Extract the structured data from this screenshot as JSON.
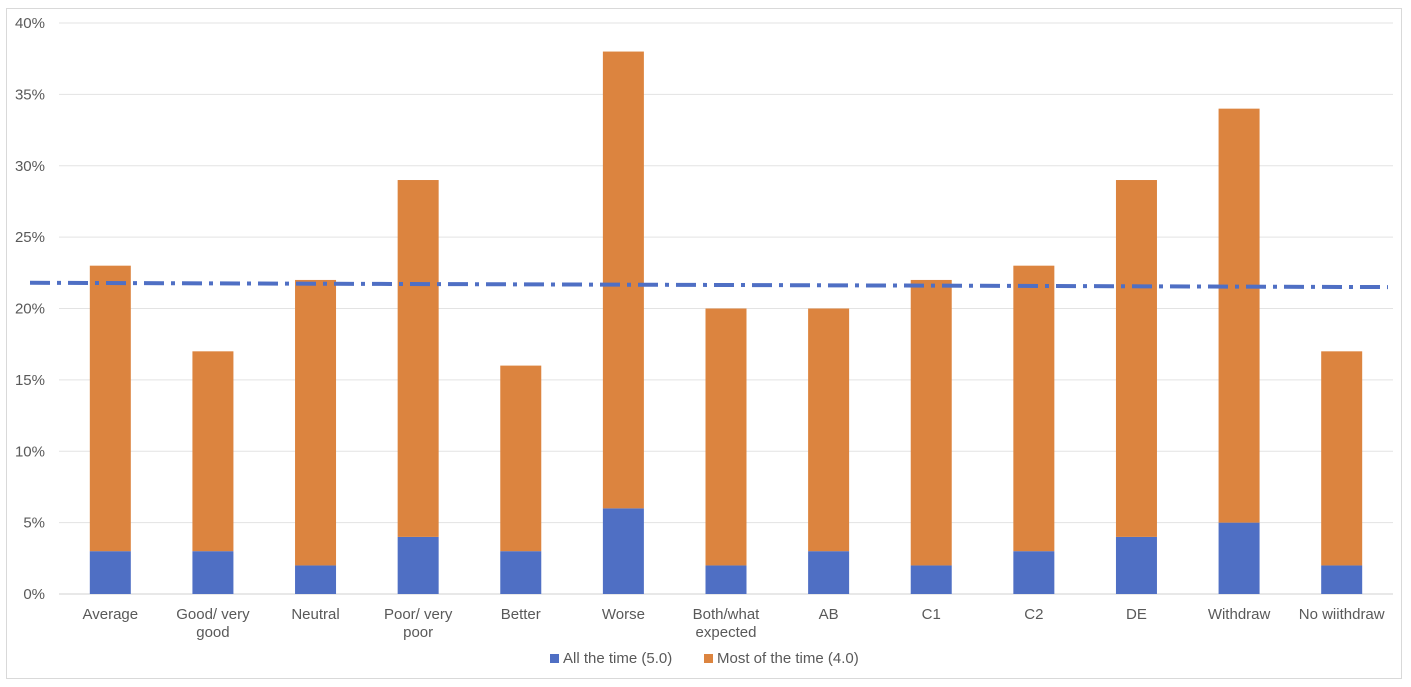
{
  "chart_data": {
    "type": "bar",
    "stacked": true,
    "categories": [
      [
        "Average"
      ],
      [
        "Good/ very",
        "good"
      ],
      [
        "Neutral"
      ],
      [
        "Poor/ very",
        "poor"
      ],
      [
        "Better"
      ],
      [
        "Worse"
      ],
      [
        "Both/what",
        "expected"
      ],
      [
        "AB"
      ],
      [
        "C1"
      ],
      [
        "C2"
      ],
      [
        "DE"
      ],
      [
        "Withdraw"
      ],
      [
        "No wiithdraw"
      ]
    ],
    "series": [
      {
        "name": "All the time (5.0)",
        "color": "#4f6fc4",
        "values": [
          3,
          3,
          2,
          4,
          3,
          6,
          2,
          3,
          2,
          3,
          4,
          5,
          2
        ]
      },
      {
        "name": "Most of the time (4.0)",
        "color": "#dc843f",
        "values": [
          20,
          14,
          20,
          25,
          13,
          32,
          18,
          17,
          20,
          20,
          25,
          29,
          15
        ]
      }
    ],
    "trendline": {
      "style": "dash-dot",
      "color": "#4f6fc4",
      "start": 21.8,
      "end": 21.5
    },
    "y_ticks": [
      "0%",
      "5%",
      "10%",
      "15%",
      "20%",
      "25%",
      "30%",
      "35%",
      "40%"
    ],
    "ylim": [
      0,
      40
    ],
    "grid": true,
    "legend": "bottom"
  }
}
